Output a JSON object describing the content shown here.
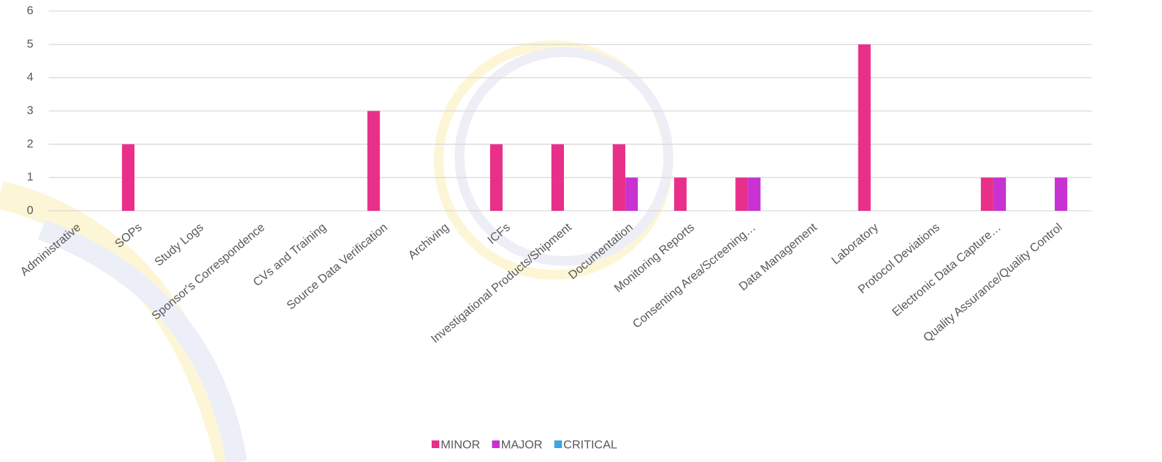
{
  "chart_data": {
    "type": "bar",
    "categories": [
      "Administrative",
      "SOPs",
      "Study Logs",
      "Sponsor's Correspondence",
      "CVs and Training",
      "Source Data Verification",
      "Archiving",
      "ICFs",
      "Investigational Products/Shipment",
      "Documentation",
      "Monitoring Reports",
      "Consenting Area/Screening…",
      "Data Management",
      "Laboratory",
      "Protocol Deviations",
      "Electronic Data Capture…",
      "Quality Assurance/Quality Control"
    ],
    "series": [
      {
        "name": "MINOR",
        "color": "#e8308a",
        "values": [
          0,
          2,
          0,
          0,
          0,
          3,
          0,
          2,
          2,
          2,
          1,
          1,
          0,
          5,
          0,
          1,
          0
        ]
      },
      {
        "name": "MAJOR",
        "color": "#c832d2",
        "values": [
          0,
          0,
          0,
          0,
          0,
          0,
          0,
          0,
          0,
          1,
          0,
          1,
          0,
          0,
          0,
          1,
          1
        ]
      },
      {
        "name": "CRITICAL",
        "color": "#3aa8e0",
        "values": [
          0,
          0,
          0,
          0,
          0,
          0,
          0,
          0,
          0,
          0,
          0,
          0,
          0,
          0,
          0,
          0,
          0
        ]
      }
    ],
    "ylim": [
      0,
      6
    ],
    "yticks": [
      0,
      1,
      2,
      3,
      4,
      5,
      6
    ],
    "grid": true,
    "legend": "bottom"
  }
}
